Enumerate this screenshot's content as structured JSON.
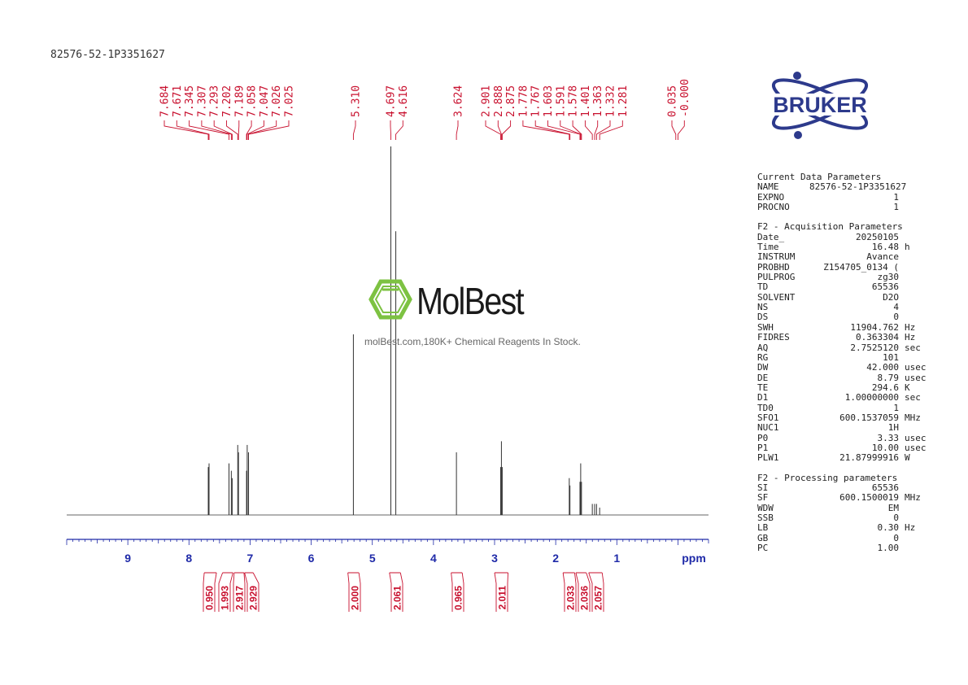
{
  "sample_id": "82576-52-1P3351627",
  "logo": {
    "text": "BRUKER",
    "color": "#2d3a8c"
  },
  "watermark": {
    "name": "MolBest",
    "tagline": "molBest.com,180K+ Chemical Reagents In Stock.",
    "color": "#7dc242"
  },
  "colors": {
    "peak_labels": "#c8102e",
    "axis": "#1f2aa8",
    "spectrum": "#333333"
  },
  "chart_data": {
    "type": "line",
    "xlabel": "ppm",
    "x_reversed": true,
    "xlim": [
      -0.5,
      10.0
    ],
    "x_ticks": [
      9,
      8,
      7,
      6,
      5,
      4,
      3,
      2,
      1
    ],
    "ylim": [
      0,
      1.0
    ],
    "peaks": [
      {
        "ppm": 7.684,
        "height": 0.13
      },
      {
        "ppm": 7.671,
        "height": 0.14
      },
      {
        "ppm": 7.345,
        "height": 0.14
      },
      {
        "ppm": 7.307,
        "height": 0.12
      },
      {
        "ppm": 7.293,
        "height": 0.1
      },
      {
        "ppm": 7.202,
        "height": 0.19
      },
      {
        "ppm": 7.189,
        "height": 0.17
      },
      {
        "ppm": 7.058,
        "height": 0.12
      },
      {
        "ppm": 7.047,
        "height": 0.19
      },
      {
        "ppm": 7.026,
        "height": 0.17
      },
      {
        "ppm": 7.025,
        "height": 0.15
      },
      {
        "ppm": 5.31,
        "height": 0.49
      },
      {
        "ppm": 4.697,
        "height": 1.0
      },
      {
        "ppm": 4.616,
        "height": 0.77
      },
      {
        "ppm": 3.624,
        "height": 0.17
      },
      {
        "ppm": 2.901,
        "height": 0.13
      },
      {
        "ppm": 2.888,
        "height": 0.2
      },
      {
        "ppm": 2.875,
        "height": 0.13
      },
      {
        "ppm": 1.778,
        "height": 0.1
      },
      {
        "ppm": 1.767,
        "height": 0.08
      },
      {
        "ppm": 1.603,
        "height": 0.09
      },
      {
        "ppm": 1.591,
        "height": 0.14
      },
      {
        "ppm": 1.578,
        "height": 0.09
      },
      {
        "ppm": 1.401,
        "height": 0.03
      },
      {
        "ppm": 1.363,
        "height": 0.03
      },
      {
        "ppm": 1.332,
        "height": 0.03
      },
      {
        "ppm": 1.281,
        "height": 0.02
      },
      {
        "ppm": 0.035,
        "height": 0.0
      },
      {
        "ppm": -0.0,
        "height": 0.0
      }
    ],
    "peak_labels": [
      "7.684",
      "7.671",
      "7.345",
      "7.307",
      "7.293",
      "7.202",
      "7.189",
      "7.058",
      "7.047",
      "7.026",
      "7.025",
      "5.310",
      "4.697",
      "4.616",
      "3.624",
      "2.901",
      "2.888",
      "2.875",
      "1.778",
      "1.767",
      "1.603",
      "1.591",
      "1.578",
      "1.401",
      "1.363",
      "1.332",
      "1.281",
      "0.035",
      "-0.000"
    ],
    "integrals": [
      {
        "from": 7.75,
        "to": 7.55,
        "value": "0.950"
      },
      {
        "from": 7.45,
        "to": 7.28,
        "value": "1.993"
      },
      {
        "from": 7.26,
        "to": 7.1,
        "value": "2.917"
      },
      {
        "from": 7.09,
        "to": 6.95,
        "value": "2.929"
      },
      {
        "from": 5.4,
        "to": 5.22,
        "value": "2.000"
      },
      {
        "from": 4.72,
        "to": 4.54,
        "value": "2.061"
      },
      {
        "from": 3.71,
        "to": 3.53,
        "value": "0.965"
      },
      {
        "from": 3.0,
        "to": 2.78,
        "value": "2.011"
      },
      {
        "from": 1.88,
        "to": 1.69,
        "value": "2.033"
      },
      {
        "from": 1.67,
        "to": 1.5,
        "value": "2.036"
      },
      {
        "from": 1.46,
        "to": 1.24,
        "value": "2.057"
      }
    ]
  },
  "params": [
    {
      "title": "Current Data Parameters",
      "rows": [
        {
          "k": "NAME",
          "v": "82576-52-1P3351627",
          "u": ""
        },
        {
          "k": "EXPNO",
          "v": "1",
          "u": ""
        },
        {
          "k": "PROCNO",
          "v": "1",
          "u": ""
        }
      ]
    },
    {
      "title": "F2 - Acquisition Parameters",
      "rows": [
        {
          "k": "Date_",
          "v": "20250105",
          "u": ""
        },
        {
          "k": "Time",
          "v": "16.48",
          "u": "h"
        },
        {
          "k": "INSTRUM",
          "v": "Avance",
          "u": ""
        },
        {
          "k": "PROBHD",
          "v": "Z154705_0134 (",
          "u": ""
        },
        {
          "k": "PULPROG",
          "v": "zg30",
          "u": ""
        },
        {
          "k": "TD",
          "v": "65536",
          "u": ""
        },
        {
          "k": "SOLVENT",
          "v": "D2O",
          "u": ""
        },
        {
          "k": "NS",
          "v": "4",
          "u": ""
        },
        {
          "k": "DS",
          "v": "0",
          "u": ""
        },
        {
          "k": "SWH",
          "v": "11904.762",
          "u": "Hz"
        },
        {
          "k": "FIDRES",
          "v": "0.363304",
          "u": "Hz"
        },
        {
          "k": "AQ",
          "v": "2.7525120",
          "u": "sec"
        },
        {
          "k": "RG",
          "v": "101",
          "u": ""
        },
        {
          "k": "DW",
          "v": "42.000",
          "u": "usec"
        },
        {
          "k": "DE",
          "v": "8.79",
          "u": "usec"
        },
        {
          "k": "TE",
          "v": "294.6",
          "u": "K"
        },
        {
          "k": "D1",
          "v": "1.00000000",
          "u": "sec"
        },
        {
          "k": "TD0",
          "v": "1",
          "u": ""
        },
        {
          "k": "SFO1",
          "v": "600.1537059",
          "u": "MHz"
        },
        {
          "k": "NUC1",
          "v": "1H",
          "u": ""
        },
        {
          "k": "P0",
          "v": "3.33",
          "u": "usec"
        },
        {
          "k": "P1",
          "v": "10.00",
          "u": "usec"
        },
        {
          "k": "PLW1",
          "v": "21.87999916",
          "u": "W"
        }
      ]
    },
    {
      "title": "F2 - Processing parameters",
      "rows": [
        {
          "k": "SI",
          "v": "65536",
          "u": ""
        },
        {
          "k": "SF",
          "v": "600.1500019",
          "u": "MHz"
        },
        {
          "k": "WDW",
          "v": "EM",
          "u": ""
        },
        {
          "k": "SSB",
          "v": "0",
          "u": ""
        },
        {
          "k": "LB",
          "v": "0.30",
          "u": "Hz"
        },
        {
          "k": "GB",
          "v": "0",
          "u": ""
        },
        {
          "k": "PC",
          "v": "1.00",
          "u": ""
        }
      ]
    }
  ]
}
